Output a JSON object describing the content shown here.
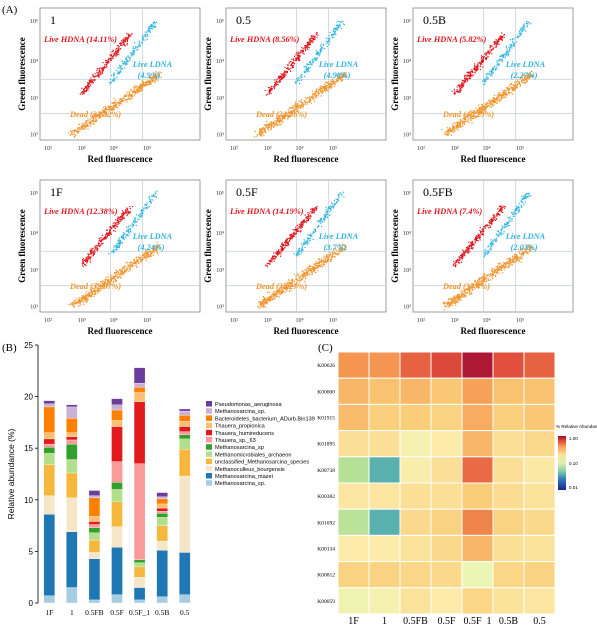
{
  "panel_labels": {
    "a": "(A)",
    "b": "(B)",
    "c": "(C)"
  },
  "flow": {
    "xlabel": "Red fluorescence",
    "ylabel": "Green fluorescence",
    "panels": [
      {
        "label": "1",
        "hdna": "Live HDNA (14.11%)",
        "ldna_name": "Live LDNA",
        "ldna_pct": "(4.9%)",
        "dead": "Dead (34.32%)"
      },
      {
        "label": "0.5",
        "hdna": "Live HDNA (8.56%)",
        "ldna_name": "Live LDNA",
        "ldna_pct": "(4.98%)",
        "dead": "Dead (34.36%)"
      },
      {
        "label": "0.5B",
        "hdna": "Live HDNA (5.82%)",
        "ldna_name": "Live LDNA",
        "ldna_pct": "(2.27%)",
        "dead": "Dead (40.29%)"
      },
      {
        "label": "1F",
        "hdna": "Live HDNA (12.38%)",
        "ldna_name": "Live LDNA",
        "ldna_pct": "(4.24%)",
        "dead": "Dead (32.87%)"
      },
      {
        "label": "0.5F",
        "hdna": "Live HDNA (14.19%)",
        "ldna_name": "Live LDNA",
        "ldna_pct": "(3.7%)",
        "dead": "Dead (33.27%)"
      },
      {
        "label": "0.5FB",
        "hdna": "Live HDNA (7.4%)",
        "ldna_name": "Live LDNA",
        "ldna_pct": "(2.03%)",
        "dead": "Dead (37.4%)"
      }
    ],
    "tick_labels": {
      "t2": "10²",
      "t3": "10³",
      "t4": "10⁴",
      "t5": "10⁵"
    },
    "colors": {
      "hdna": "#e0141c",
      "ldna": "#2fb4e0",
      "dead": "#f0952e"
    }
  },
  "chart_data": [
    {
      "type": "bar",
      "stacked": true,
      "ylabel": "Relative abundance (%)",
      "ylim": [
        0,
        25
      ],
      "yticks": [
        "0",
        "5",
        "10",
        "15",
        "20",
        "25"
      ],
      "categories": [
        "1F",
        "1",
        "0.5FB",
        "0.5F",
        "0.5F_1",
        "0.5B",
        "0.5"
      ],
      "series": [
        {
          "name": "Methanosarcina_sp.",
          "color": "#a6cee3",
          "values": [
            0.7,
            1.5,
            0.3,
            0.8,
            0.3,
            0.6,
            0.8
          ]
        },
        {
          "name": "Methanosarcina_mazei",
          "color": "#1f78b4",
          "values": [
            7.9,
            5.4,
            4.0,
            4.6,
            1.2,
            4.5,
            4.1
          ]
        },
        {
          "name": "Methanoculleus_bourgensis",
          "color": "#f5e6c8",
          "values": [
            1.8,
            3.3,
            0.6,
            2.0,
            1.0,
            0.9,
            7.4
          ]
        },
        {
          "name": "unclassified_Methanosarcina_species",
          "color": "#f5b83d",
          "values": [
            3.0,
            2.4,
            1.2,
            2.4,
            1.0,
            1.5,
            2.6
          ]
        },
        {
          "name": "Methanomicrobiales_archaeon",
          "color": "#b2df8a",
          "values": [
            1.1,
            1.3,
            0.7,
            1.2,
            0.4,
            0.8,
            1.0
          ]
        },
        {
          "name": "Methanosarcina_sp",
          "color": "#33a02c",
          "values": [
            0.6,
            1.5,
            0.5,
            0.7,
            0.3,
            0.4,
            0.4
          ]
        },
        {
          "name": "Thauera_sp._63",
          "color": "#fb9a99",
          "values": [
            0.3,
            0.4,
            0.3,
            2.0,
            9.3,
            0.2,
            0.3
          ]
        },
        {
          "name": "Thauera_humireducens",
          "color": "#e31a1c",
          "values": [
            0.5,
            0.3,
            0.3,
            3.4,
            6.0,
            0.3,
            0.5
          ]
        },
        {
          "name": "Thauera_propionica",
          "color": "#fdbf6f",
          "values": [
            0.6,
            0.4,
            0.5,
            0.6,
            0.9,
            0.4,
            0.5
          ]
        },
        {
          "name": "Bacteroidetes_bacterium_ADurb.Bin139",
          "color": "#ff7f00",
          "values": [
            2.5,
            1.4,
            1.8,
            1.0,
            0.5,
            0.5,
            0.6
          ]
        },
        {
          "name": "Methanosarcina_sp.",
          "color": "#cab2d6",
          "values": [
            0.3,
            1.1,
            0.2,
            0.5,
            0.4,
            0.2,
            0.4
          ]
        },
        {
          "name": "Pseudomonas_aeruginosa",
          "color": "#6a3d9a",
          "values": [
            0.3,
            0.2,
            0.5,
            0.6,
            1.5,
            0.4,
            0.2
          ]
        }
      ]
    },
    {
      "type": "heatmap",
      "rows": [
        "K00626",
        "K00600",
        "K01915",
        "K01895",
        "K08738",
        "K00382",
        "K01692",
        "K00134",
        "K00812",
        "K00059"
      ],
      "columns": [
        "1F",
        "1",
        "0.5FB",
        "0.5F",
        "0.5F_1",
        "0.5B",
        "0.5"
      ],
      "values": [
        [
          0.82,
          0.82,
          0.88,
          0.91,
          0.98,
          0.9,
          0.88
        ],
        [
          0.76,
          0.74,
          0.76,
          0.73,
          0.8,
          0.74,
          0.74
        ],
        [
          0.75,
          0.71,
          0.72,
          0.7,
          0.78,
          0.71,
          0.73
        ],
        [
          0.66,
          0.66,
          0.57,
          0.62,
          0.76,
          0.66,
          0.68
        ],
        [
          0.42,
          0.28,
          0.6,
          0.66,
          0.87,
          0.66,
          0.63
        ],
        [
          0.64,
          0.64,
          0.66,
          0.66,
          0.72,
          0.67,
          0.65
        ],
        [
          0.43,
          0.28,
          0.68,
          0.7,
          0.84,
          0.7,
          0.68
        ],
        [
          0.62,
          0.62,
          0.65,
          0.68,
          0.76,
          0.66,
          0.65
        ],
        [
          0.7,
          0.7,
          0.69,
          0.68,
          0.52,
          0.69,
          0.7
        ],
        [
          0.55,
          0.57,
          0.65,
          0.62,
          0.69,
          0.65,
          0.64
        ]
      ],
      "legend_title": "% Relative Abundance",
      "legend_ticks": [
        "1.00",
        "0.10",
        "0.01"
      ]
    }
  ]
}
